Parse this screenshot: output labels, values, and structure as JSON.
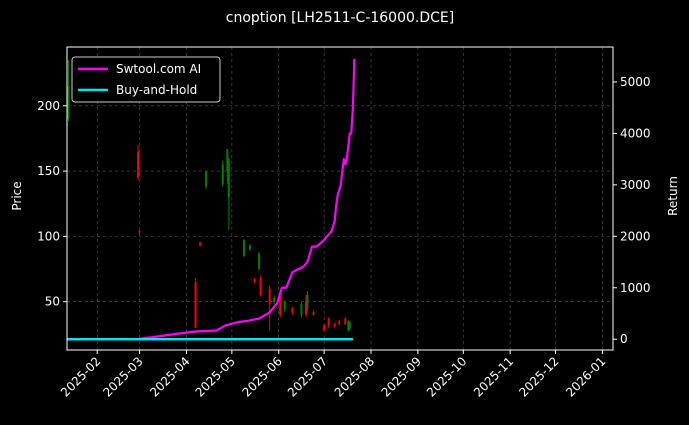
{
  "chart_data": {
    "type": "line",
    "title": "cnoption [LH2511-C-16000.DCE]",
    "ylabel": "Price",
    "y2label": "Return",
    "ylim": [
      13,
      245
    ],
    "y2lim": [
      -210,
      5680
    ],
    "xlim": [
      "2025-01-12",
      "2026-01-08"
    ],
    "grid": true,
    "legend_placement": "top-left",
    "x_ticks": [
      "2025-02",
      "2025-03",
      "2025-04",
      "2025-05",
      "2025-06",
      "2025-07",
      "2025-08",
      "2025-09",
      "2025-10",
      "2025-11",
      "2025-12",
      "2026-01"
    ],
    "y_ticks": [
      50,
      100,
      150,
      200
    ],
    "y2_ticks": [
      0,
      1000,
      2000,
      3000,
      4000,
      5000
    ],
    "colors": {
      "up": "#008000",
      "down": "#ff0000",
      "strategy": "#ff00ff",
      "benchmark": "#00e5ee",
      "grid": "#555555",
      "background": "#000000"
    },
    "series": [
      {
        "name": "Swtool.com AI",
        "axis": "right",
        "x": [
          "2025-01-12",
          "2025-02-27",
          "2025-03-10",
          "2025-03-24",
          "2025-04-07",
          "2025-04-21",
          "2025-04-27",
          "2025-05-05",
          "2025-05-12",
          "2025-05-19",
          "2025-05-26",
          "2025-05-31",
          "2025-06-03",
          "2025-06-06",
          "2025-06-10",
          "2025-06-13",
          "2025-06-17",
          "2025-06-20",
          "2025-06-23",
          "2025-06-26",
          "2025-06-30",
          "2025-07-03",
          "2025-07-06",
          "2025-07-08",
          "2025-07-09",
          "2025-07-10",
          "2025-07-12",
          "2025-07-14",
          "2025-07-15",
          "2025-07-16",
          "2025-07-18",
          "2025-07-19",
          "2025-07-20",
          "2025-07-21"
        ],
        "values": [
          0,
          0,
          40,
          100,
          150,
          170,
          270,
          330,
          360,
          400,
          520,
          700,
          1000,
          1000,
          1300,
          1350,
          1400,
          1500,
          1800,
          1800,
          1900,
          2000,
          2100,
          2300,
          2600,
          2800,
          3000,
          3500,
          3400,
          3500,
          4000,
          4000,
          4500,
          5450
        ]
      },
      {
        "name": "Buy-and-Hold",
        "axis": "right",
        "x": [
          "2025-01-12",
          "2025-07-20"
        ],
        "values": [
          0,
          0
        ]
      }
    ],
    "candles": [
      {
        "date": "2025-01-13",
        "open": 190,
        "close": 215,
        "low": 188,
        "high": 235
      },
      {
        "date": "2025-02-28",
        "open": 165,
        "close": 145,
        "low": 143,
        "high": 170
      },
      {
        "date": "2025-03-01",
        "open": 104,
        "close": 103,
        "low": 102,
        "high": 105
      },
      {
        "date": "2025-04-07",
        "open": 65,
        "close": 30,
        "low": 30,
        "high": 68
      },
      {
        "date": "2025-04-10",
        "open": 95,
        "close": 93,
        "low": 92,
        "high": 96
      },
      {
        "date": "2025-04-14",
        "open": 138,
        "close": 150,
        "low": 136,
        "high": 150
      },
      {
        "date": "2025-04-25",
        "open": 140,
        "close": 155,
        "low": 138,
        "high": 158
      },
      {
        "date": "2025-04-28",
        "open": 150,
        "close": 167,
        "low": 140,
        "high": 167
      },
      {
        "date": "2025-04-29",
        "open": 130,
        "close": 158,
        "low": 105,
        "high": 160
      },
      {
        "date": "2025-05-09",
        "open": 85,
        "close": 97,
        "low": 84,
        "high": 98
      },
      {
        "date": "2025-05-13",
        "open": 90,
        "close": 93,
        "low": 89,
        "high": 94
      },
      {
        "date": "2025-05-16",
        "open": 67,
        "close": 65,
        "low": 64,
        "high": 68
      },
      {
        "date": "2025-05-19",
        "open": 75,
        "close": 87,
        "low": 74,
        "high": 88
      },
      {
        "date": "2025-05-20",
        "open": 68,
        "close": 55,
        "low": 54,
        "high": 70
      },
      {
        "date": "2025-05-26",
        "open": 60,
        "close": 48,
        "low": 28,
        "high": 62
      },
      {
        "date": "2025-05-29",
        "open": 50,
        "close": 53,
        "low": 48,
        "high": 55
      },
      {
        "date": "2025-06-02",
        "open": 55,
        "close": 40,
        "low": 38,
        "high": 57
      },
      {
        "date": "2025-06-05",
        "open": 44,
        "close": 50,
        "low": 42,
        "high": 51
      },
      {
        "date": "2025-06-10",
        "open": 45,
        "close": 42,
        "low": 40,
        "high": 46
      },
      {
        "date": "2025-06-16",
        "open": 40,
        "close": 48,
        "low": 38,
        "high": 50
      },
      {
        "date": "2025-06-19",
        "open": 50,
        "close": 40,
        "low": 38,
        "high": 55
      },
      {
        "date": "2025-06-20",
        "open": 45,
        "close": 55,
        "low": 43,
        "high": 58
      },
      {
        "date": "2025-06-24",
        "open": 42,
        "close": 40,
        "low": 39,
        "high": 43
      },
      {
        "date": "2025-07-01",
        "open": 32,
        "close": 28,
        "low": 27,
        "high": 33
      },
      {
        "date": "2025-07-04",
        "open": 37,
        "close": 32,
        "low": 30,
        "high": 38
      },
      {
        "date": "2025-07-08",
        "open": 33,
        "close": 31,
        "low": 30,
        "high": 34
      },
      {
        "date": "2025-07-11",
        "open": 35,
        "close": 33,
        "low": 32,
        "high": 36
      },
      {
        "date": "2025-07-15",
        "open": 37,
        "close": 33,
        "low": 32,
        "high": 38
      },
      {
        "date": "2025-07-17",
        "open": 28,
        "close": 35,
        "low": 27,
        "high": 36
      },
      {
        "date": "2025-07-18",
        "open": 30,
        "close": 34,
        "low": 28,
        "high": 35
      }
    ]
  }
}
